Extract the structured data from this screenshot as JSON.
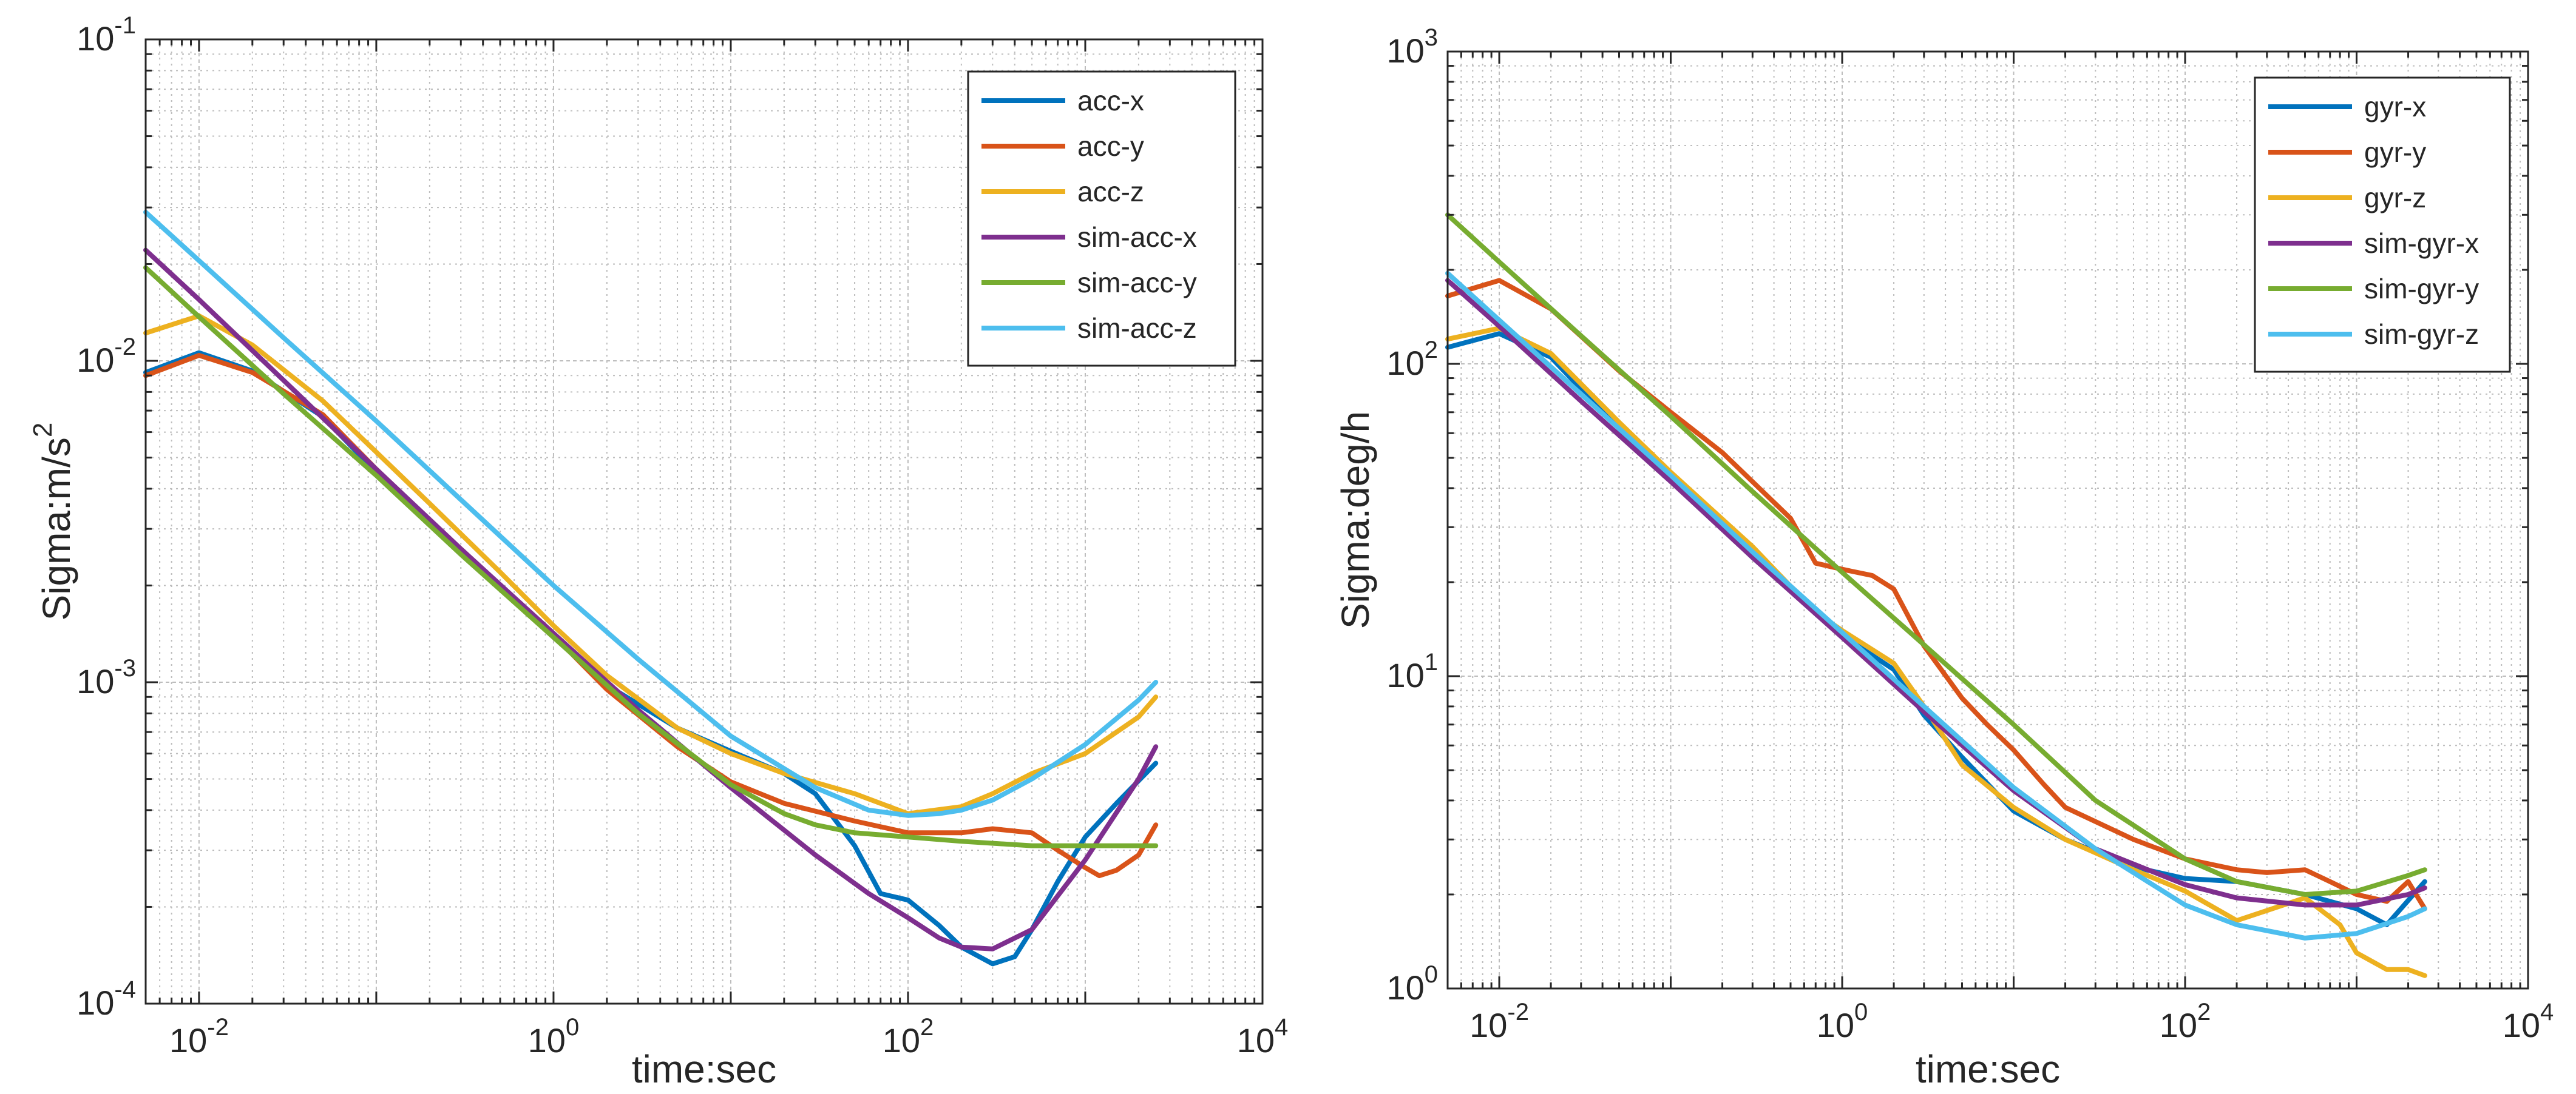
{
  "chart_data": [
    {
      "type": "line",
      "xlabel": "time:sec",
      "ylabel": "Sigma:m/s",
      "ylabel_superscript": "2",
      "xscale": "log",
      "yscale": "log",
      "xlim": [
        0.005,
        10000
      ],
      "ylim": [
        0.0001,
        0.1
      ],
      "x_ticks": [
        {
          "value": 0.01,
          "base": "10",
          "exp": "-2"
        },
        {
          "value": 1,
          "base": "10",
          "exp": "0"
        },
        {
          "value": 100,
          "base": "10",
          "exp": "2"
        },
        {
          "value": 10000,
          "base": "10",
          "exp": "4"
        }
      ],
      "y_ticks": [
        {
          "value": 0.0001,
          "base": "10",
          "exp": "-4"
        },
        {
          "value": 0.001,
          "base": "10",
          "exp": "-3"
        },
        {
          "value": 0.01,
          "base": "10",
          "exp": "-2"
        },
        {
          "value": 0.1,
          "base": "10",
          "exp": "-1"
        }
      ],
      "grid": true,
      "legend_position": "top-right",
      "series": [
        {
          "name": "acc-x",
          "color": "#0072BD",
          "x": [
            0.005,
            0.01,
            0.02,
            0.05,
            0.1,
            0.2,
            0.5,
            1,
            2,
            5,
            10,
            20,
            30,
            50,
            70,
            100,
            150,
            200,
            300,
            400,
            500,
            700,
            1000,
            1500,
            2500
          ],
          "y": [
            0.0092,
            0.0106,
            0.0093,
            0.0067,
            0.0045,
            0.0031,
            0.002,
            0.0014,
            0.00098,
            0.00072,
            0.00061,
            0.00052,
            0.00045,
            0.00031,
            0.00022,
            0.00021,
            0.000175,
            0.00015,
            0.000133,
            0.00014,
            0.00017,
            0.00024,
            0.00033,
            0.00042,
            0.00056
          ]
        },
        {
          "name": "acc-y",
          "color": "#D95319",
          "x": [
            0.005,
            0.01,
            0.02,
            0.05,
            0.1,
            0.2,
            0.5,
            1,
            2,
            5,
            10,
            20,
            50,
            100,
            200,
            300,
            500,
            700,
            1000,
            1200,
            1500,
            2000,
            2500
          ],
          "y": [
            0.009,
            0.0104,
            0.0092,
            0.0068,
            0.0046,
            0.0032,
            0.002,
            0.0014,
            0.00095,
            0.00063,
            0.00049,
            0.00042,
            0.00037,
            0.00034,
            0.00034,
            0.00035,
            0.00034,
            0.0003,
            0.000265,
            0.00025,
            0.00026,
            0.00029,
            0.00036
          ]
        },
        {
          "name": "acc-z",
          "color": "#EDB120",
          "x": [
            0.005,
            0.01,
            0.02,
            0.05,
            0.1,
            0.2,
            0.5,
            1,
            2,
            5,
            10,
            20,
            50,
            100,
            200,
            300,
            500,
            1000,
            2000,
            2500
          ],
          "y": [
            0.0122,
            0.0138,
            0.0112,
            0.0075,
            0.0052,
            0.0036,
            0.0022,
            0.0015,
            0.00105,
            0.00072,
            0.0006,
            0.00052,
            0.00045,
            0.00039,
            0.00041,
            0.00045,
            0.00052,
            0.0006,
            0.00078,
            0.0009
          ]
        },
        {
          "name": "sim-acc-x",
          "color": "#7E2F8E",
          "x": [
            0.005,
            0.01,
            0.03,
            0.1,
            0.3,
            1,
            3,
            10,
            30,
            60,
            100,
            150,
            200,
            300,
            500,
            1000,
            2000,
            2500
          ],
          "y": [
            0.0221,
            0.0155,
            0.0087,
            0.0046,
            0.0026,
            0.00142,
            0.00082,
            0.00047,
            0.00029,
            0.00022,
            0.000185,
            0.00016,
            0.00015,
            0.000148,
            0.00017,
            0.00028,
            0.0005,
            0.00063
          ]
        },
        {
          "name": "sim-acc-y",
          "color": "#77AC30",
          "x": [
            0.005,
            0.01,
            0.03,
            0.1,
            0.3,
            1,
            3,
            10,
            20,
            30,
            50,
            100,
            200,
            500,
            1000,
            2500
          ],
          "y": [
            0.0195,
            0.0137,
            0.0079,
            0.0044,
            0.0025,
            0.00138,
            0.0008,
            0.00048,
            0.00039,
            0.00036,
            0.00034,
            0.00033,
            0.00032,
            0.00031,
            0.00031,
            0.00031
          ]
        },
        {
          "name": "sim-acc-z",
          "color": "#4DBEEE",
          "x": [
            0.005,
            0.01,
            0.03,
            0.1,
            0.3,
            1,
            3,
            10,
            30,
            60,
            100,
            150,
            200,
            300,
            500,
            1000,
            2000,
            2500
          ],
          "y": [
            0.029,
            0.0205,
            0.0118,
            0.0065,
            0.0037,
            0.002,
            0.00118,
            0.00068,
            0.00047,
            0.0004,
            0.000385,
            0.00039,
            0.0004,
            0.00043,
            0.0005,
            0.00064,
            0.00088,
            0.001
          ]
        }
      ]
    },
    {
      "type": "line",
      "xlabel": "time:sec",
      "ylabel": "Sigma:deg/h",
      "xscale": "log",
      "yscale": "log",
      "xlim": [
        0.005,
        10000
      ],
      "ylim": [
        1,
        1000
      ],
      "x_ticks": [
        {
          "value": 0.01,
          "base": "10",
          "exp": "-2"
        },
        {
          "value": 1,
          "base": "10",
          "exp": "0"
        },
        {
          "value": 100,
          "base": "10",
          "exp": "2"
        },
        {
          "value": 10000,
          "base": "10",
          "exp": "4"
        }
      ],
      "y_ticks": [
        {
          "value": 1,
          "base": "10",
          "exp": "0"
        },
        {
          "value": 10,
          "base": "10",
          "exp": "1"
        },
        {
          "value": 100,
          "base": "10",
          "exp": "2"
        },
        {
          "value": 1000,
          "base": "10",
          "exp": "3"
        }
      ],
      "grid": true,
      "legend_position": "top-right",
      "series": [
        {
          "name": "gyr-x",
          "color": "#0072BD",
          "x": [
            0.005,
            0.01,
            0.02,
            0.05,
            0.1,
            0.3,
            1,
            2,
            3,
            5,
            10,
            20,
            50,
            100,
            200,
            500,
            1000,
            1500,
            2500
          ],
          "y": [
            113,
            125,
            105,
            62,
            43,
            24,
            13.5,
            10.5,
            7.5,
            5.5,
            3.7,
            3.0,
            2.45,
            2.25,
            2.2,
            2.0,
            1.8,
            1.6,
            2.2
          ]
        },
        {
          "name": "gyr-y",
          "color": "#D95319",
          "x": [
            0.005,
            0.01,
            0.02,
            0.05,
            0.1,
            0.2,
            0.5,
            0.7,
            1,
            1.5,
            2,
            3,
            5,
            7,
            10,
            15,
            20,
            50,
            100,
            200,
            300,
            500,
            700,
            1000,
            1500,
            2000,
            2500
          ],
          "y": [
            165,
            185,
            150,
            95,
            70,
            52,
            32,
            23,
            22,
            21,
            19,
            12.5,
            8.5,
            7.0,
            5.8,
            4.5,
            3.8,
            3.0,
            2.6,
            2.4,
            2.35,
            2.4,
            2.2,
            2.0,
            1.9,
            2.2,
            1.8
          ]
        },
        {
          "name": "gyr-z",
          "color": "#EDB120",
          "x": [
            0.005,
            0.01,
            0.02,
            0.05,
            0.1,
            0.3,
            0.7,
            1,
            2,
            3,
            5,
            10,
            20,
            50,
            100,
            200,
            500,
            800,
            1000,
            1500,
            2000,
            2500
          ],
          "y": [
            120,
            130,
            108,
            65,
            45,
            26,
            16,
            14,
            11,
            8,
            5.2,
            3.8,
            3.0,
            2.4,
            2.05,
            1.65,
            1.95,
            1.6,
            1.3,
            1.15,
            1.15,
            1.1
          ]
        },
        {
          "name": "sim-gyr-x",
          "color": "#7E2F8E",
          "x": [
            0.005,
            0.01,
            0.03,
            0.1,
            0.3,
            1,
            3,
            10,
            30,
            100,
            200,
            500,
            1000,
            2000,
            2500
          ],
          "y": [
            185,
            132,
            76,
            42,
            24,
            13.3,
            7.7,
            4.3,
            2.8,
            2.15,
            1.95,
            1.85,
            1.85,
            2.0,
            2.1
          ]
        },
        {
          "name": "sim-gyr-y",
          "color": "#77AC30",
          "x": [
            0.005,
            0.01,
            0.03,
            0.1,
            0.3,
            1,
            3,
            10,
            30,
            100,
            200,
            500,
            1000,
            2000,
            2500
          ],
          "y": [
            300,
            212,
            123,
            68,
            39,
            21.5,
            12.6,
            7.0,
            4.0,
            2.6,
            2.2,
            2.0,
            2.05,
            2.3,
            2.4
          ]
        },
        {
          "name": "sim-gyr-z",
          "color": "#4DBEEE",
          "x": [
            0.005,
            0.01,
            0.03,
            0.1,
            0.3,
            1,
            3,
            10,
            30,
            100,
            200,
            500,
            1000,
            2000,
            2500
          ],
          "y": [
            195,
            138,
            80,
            44,
            25,
            13.8,
            8.0,
            4.4,
            2.8,
            1.85,
            1.6,
            1.45,
            1.5,
            1.7,
            1.8
          ]
        }
      ]
    }
  ]
}
